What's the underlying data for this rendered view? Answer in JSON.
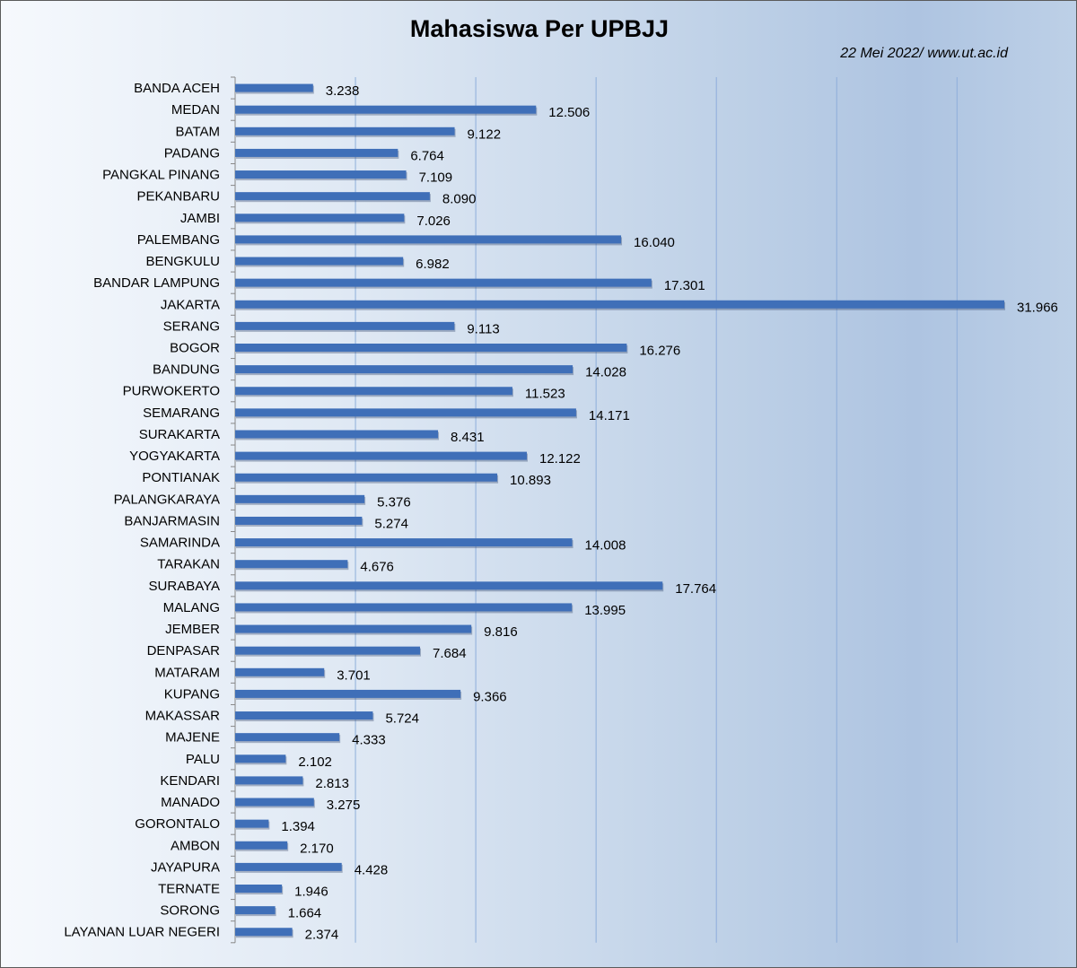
{
  "chart_data": {
    "type": "bar",
    "orientation": "horizontal",
    "title": "Mahasiswa Per UPBJJ",
    "subtitle": "22 Mei 2022/ www.ut.ac.id",
    "xlim": [
      0,
      32000
    ],
    "grid": true,
    "bar_color": "#3f6fb8",
    "categories": [
      "BANDA ACEH",
      "MEDAN",
      "BATAM",
      "PADANG",
      "PANGKAL PINANG",
      "PEKANBARU",
      "JAMBI",
      "PALEMBANG",
      "BENGKULU",
      "BANDAR LAMPUNG",
      "JAKARTA",
      "SERANG",
      "BOGOR",
      "BANDUNG",
      "PURWOKERTO",
      "SEMARANG",
      "SURAKARTA",
      "YOGYAKARTA",
      "PONTIANAK",
      "PALANGKARAYA",
      "BANJARMASIN",
      "SAMARINDA",
      "TARAKAN",
      "SURABAYA",
      "MALANG",
      "JEMBER",
      "DENPASAR",
      "MATARAM",
      "KUPANG",
      "MAKASSAR",
      "MAJENE",
      "PALU",
      "KENDARI",
      "MANADO",
      "GORONTALO",
      "AMBON",
      "JAYAPURA",
      "TERNATE",
      "SORONG",
      "LAYANAN LUAR NEGERI"
    ],
    "values": [
      3238,
      12506,
      9122,
      6764,
      7109,
      8090,
      7026,
      16040,
      6982,
      17301,
      31966,
      9113,
      16276,
      14028,
      11523,
      14171,
      8431,
      12122,
      10893,
      5376,
      5274,
      14008,
      4676,
      17764,
      13995,
      9816,
      7684,
      3701,
      9366,
      5724,
      4333,
      2102,
      2813,
      3275,
      1394,
      2170,
      4428,
      1946,
      1664,
      2374
    ],
    "value_labels": [
      "3.238",
      "12.506",
      "9.122",
      "6.764",
      "7.109",
      "8.090",
      "7.026",
      "16.040",
      "6.982",
      "17.301",
      "31.966",
      "9.113",
      "16.276",
      "14.028",
      "11.523",
      "14.171",
      "8.431",
      "12.122",
      "10.893",
      "5.376",
      "5.274",
      "14.008",
      "4.676",
      "17.764",
      "13.995",
      "9.816",
      "7.684",
      "3.701",
      "9.366",
      "5.724",
      "4.333",
      "2.102",
      "2.813",
      "3.275",
      "1.394",
      "2.170",
      "4.428",
      "1.946",
      "1.664",
      "2.374"
    ]
  }
}
